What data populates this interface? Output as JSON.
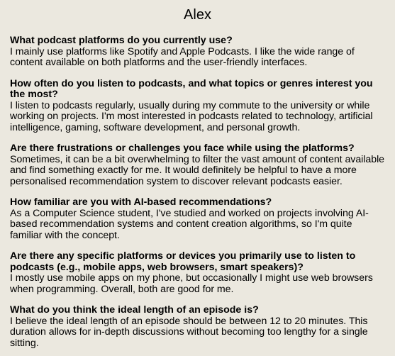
{
  "title": "Alex",
  "qa": [
    {
      "question": "What podcast platforms do you currently use?",
      "answer": "I mainly use platforms like Spotify and Apple Podcasts. I like the wide range of content available on both platforms and the user-friendly interfaces."
    },
    {
      "question": "How often do you listen to podcasts, and what topics or genres interest you the most?",
      "answer": "I listen to podcasts regularly, usually during my commute to the university or while working on projects. I'm most interested in podcasts related to technology, artificial intelligence, gaming, software development, and personal growth."
    },
    {
      "question": "Are there frustrations or challenges you face while using the platforms?",
      "answer": "Sometimes, it can be a bit overwhelming to filter the vast amount of content available and find something exactly for me. It would definitely be helpful to have a more personalised recommendation system to discover relevant podcasts easier."
    },
    {
      "question": "How familiar are you with AI-based recommendations?",
      "answer": "As a Computer Science student, I've studied and worked on projects involving AI-based recommendation systems and content creation algorithms, so I'm quite familiar with the concept."
    },
    {
      "question": "Are there any specific platforms or devices you primarily use to listen to podcasts (e.g., mobile apps, web browsers, smart speakers)?",
      "answer": "I mostly use mobile apps on my phone, but occasionally I might use web browsers when programming. Overall, both are good for me."
    },
    {
      "question": "What do you think the ideal length of an episode is?",
      "answer": "I believe the ideal length of an episode should be between 12 to 20 minutes. This duration allows for in-depth discussions without becoming too lengthy for a single sitting."
    }
  ]
}
